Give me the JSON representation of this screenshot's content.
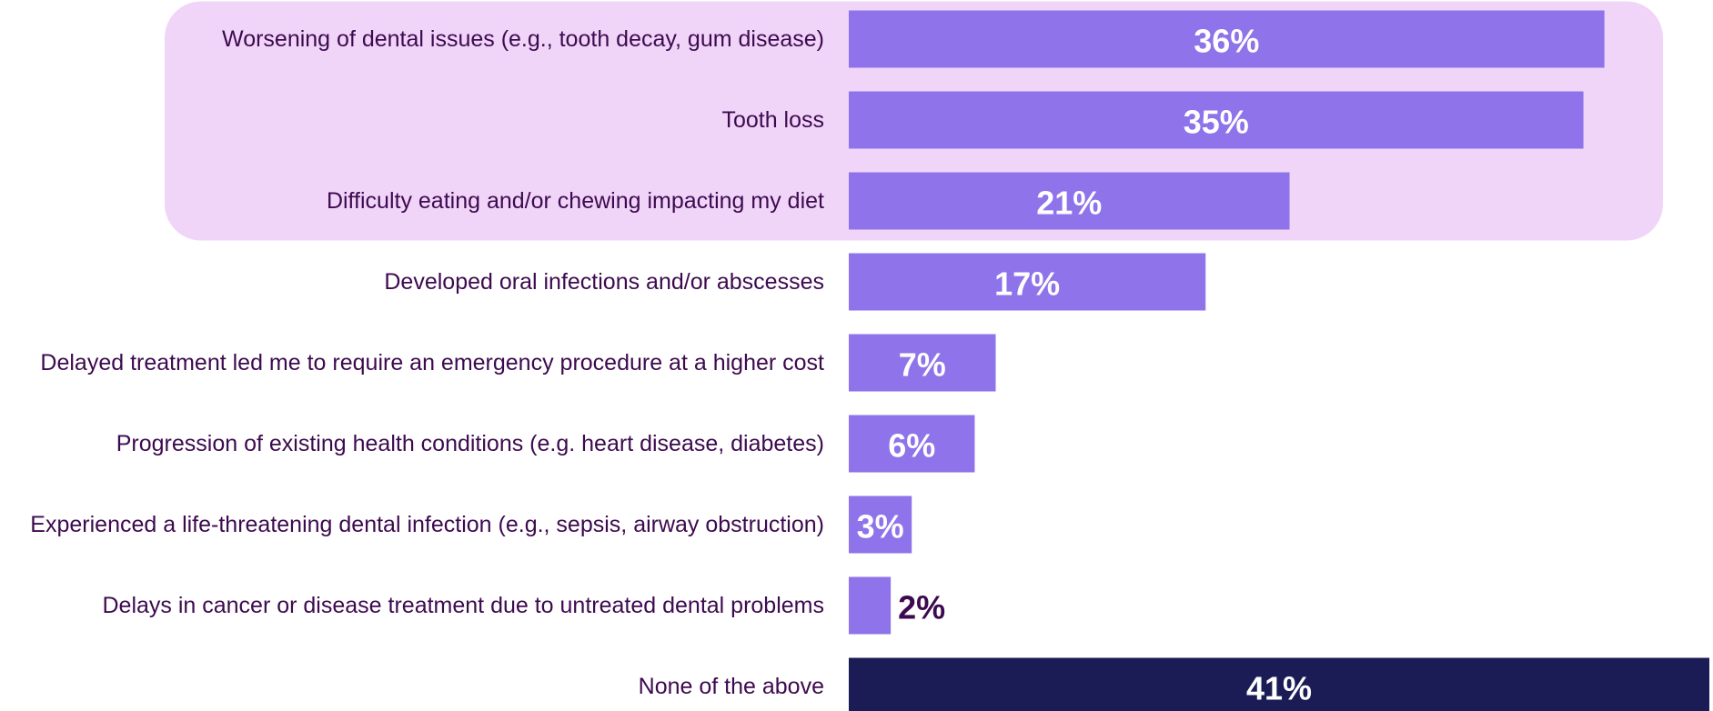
{
  "chart_data": {
    "type": "bar",
    "orientation": "horizontal",
    "categories": [
      "Worsening of dental issues (e.g., tooth decay, gum disease)",
      "Tooth loss",
      "Difficulty eating and/or chewing impacting my diet",
      "Developed oral infections and/or abscesses",
      "Delayed treatment led me to require an emergency procedure at a higher cost",
      "Progression of existing health conditions (e.g. heart disease, diabetes)",
      "Experienced a life-threatening dental infection (e.g., sepsis, airway obstruction)",
      "Delays in cancer or disease treatment due to untreated dental problems",
      "None of the above"
    ],
    "values": [
      36,
      35,
      21,
      17,
      7,
      6,
      3,
      2,
      41
    ],
    "value_labels": [
      "36%",
      "35%",
      "21%",
      "17%",
      "7%",
      "6%",
      "3%",
      "2%",
      "41%"
    ],
    "xlim": [
      0,
      41
    ],
    "highlighted_categories": [
      0,
      1,
      2
    ],
    "colors": {
      "bar": "#8e73ea",
      "bar_none": "#1b1c55",
      "highlight_band": "#f0d5f9",
      "label_text": "#3d0a4f",
      "value_text_inside": "#ffffff",
      "value_text_outside": "#3d0a4f"
    }
  }
}
